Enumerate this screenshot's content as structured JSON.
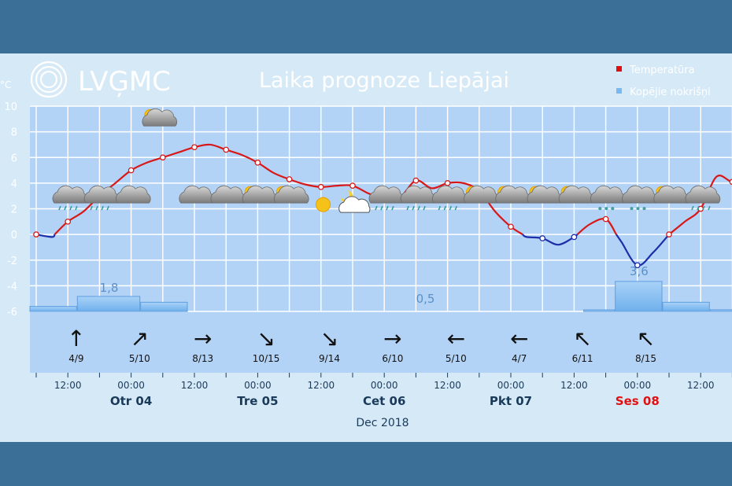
{
  "header": {
    "logo_text": "LVĢMC",
    "title": "Laika prognoze Liepājai"
  },
  "legend": {
    "placement": "top-right",
    "items": [
      {
        "label": "Temperatūra",
        "color": "#e01010"
      },
      {
        "label": "Kopējie nokrišņi",
        "color": "#7ab8f0"
      }
    ]
  },
  "chart_data": {
    "type": "line",
    "title": "Laika prognoze Liepājai",
    "yunit": "°C",
    "ylim": [
      -6,
      10
    ],
    "yticks": [
      "10",
      "8",
      "6",
      "4",
      "2",
      "0",
      "-2",
      "-4",
      "-6"
    ],
    "grid": true,
    "month_label": "Dec 2018",
    "time_ticks": [
      "12:00",
      "00:00",
      "12:00",
      "00:00",
      "12:00",
      "00:00",
      "12:00",
      "00:00",
      "12:00",
      "00:00",
      "12:00"
    ],
    "day_labels": [
      {
        "label": "Otr 04",
        "weekend": false
      },
      {
        "label": "Tre 05",
        "weekend": false
      },
      {
        "label": "Cet 06",
        "weekend": false
      },
      {
        "label": "Pkt 07",
        "weekend": false
      },
      {
        "label": "Ses 08",
        "weekend": true
      }
    ],
    "x_hours": [
      0,
      3,
      6,
      9,
      12,
      15,
      18,
      21,
      24,
      27,
      30,
      33,
      36,
      39,
      42,
      45,
      48,
      51,
      54,
      57,
      60,
      63,
      66,
      69,
      72,
      75,
      78,
      81,
      84,
      87,
      90,
      93,
      96,
      99,
      102,
      105,
      108,
      111
    ],
    "temperature": [
      0.0,
      -0.2,
      1.0,
      1.8,
      3.0,
      4.0,
      5.0,
      5.6,
      6.0,
      6.4,
      6.8,
      7.0,
      6.6,
      6.2,
      5.6,
      4.8,
      4.3,
      3.9,
      3.7,
      3.8,
      3.8,
      3.2,
      2.8,
      2.9,
      4.2,
      3.6,
      4.0,
      4.0,
      3.4,
      1.8,
      0.6,
      -0.2,
      -0.3,
      -0.8,
      -0.2,
      0.8,
      1.2,
      -0.6
    ],
    "temperature_tail": {
      "x_hours": [
        114,
        117,
        120,
        123,
        126,
        129,
        132,
        135
      ],
      "values": [
        -2.4,
        -1.4,
        0.0,
        1.0,
        2.0,
        4.5,
        4.1,
        4.3
      ]
    },
    "marker_hours": [
      0,
      6,
      12,
      18,
      24,
      30,
      36,
      42,
      48,
      54,
      60,
      66,
      72,
      78,
      84,
      90,
      96,
      102,
      108,
      114,
      120,
      126,
      132
    ],
    "precipitation": [
      {
        "start": 0,
        "end": 9,
        "value": 0.6
      },
      {
        "start": 9,
        "end": 21,
        "value": 1.8
      },
      {
        "start": 21,
        "end": 30,
        "value": 1.1
      },
      {
        "start": 105,
        "end": 111,
        "value": 0.1
      },
      {
        "start": 111,
        "end": 120,
        "value": 3.6
      },
      {
        "start": 120,
        "end": 129,
        "value": 1.1
      },
      {
        "start": 129,
        "end": 135,
        "value": 0.2
      }
    ],
    "precip_labels": [
      {
        "text": "1,8",
        "hour": 15
      },
      {
        "text": "0,5",
        "hour": 75
      },
      {
        "text": "3,6",
        "hour": 115.5
      }
    ],
    "wind": [
      {
        "hour": 7,
        "label": "4/9",
        "dir": "↑"
      },
      {
        "hour": 19,
        "label": "5/10",
        "dir": "↗"
      },
      {
        "hour": 31,
        "label": "8/13",
        "dir": "→"
      },
      {
        "hour": 43,
        "label": "10/15",
        "dir": "↘"
      },
      {
        "hour": 55,
        "label": "9/14",
        "dir": "↘"
      },
      {
        "hour": 67,
        "label": "6/10",
        "dir": "→"
      },
      {
        "hour": 79,
        "label": "5/10",
        "dir": "←"
      },
      {
        "hour": 91,
        "label": "4/7",
        "dir": "←"
      },
      {
        "hour": 103,
        "label": "6/11",
        "dir": "↖"
      },
      {
        "hour": 115,
        "label": "8/15",
        "dir": "↖"
      }
    ],
    "weather_icons": [
      {
        "hour": 7,
        "icon": "rain-cloud-icon"
      },
      {
        "hour": 13,
        "icon": "rain-cloud-icon"
      },
      {
        "hour": 19,
        "icon": "cloud-icon"
      },
      {
        "hour": 24,
        "icon": "partly-cloudy-icon"
      },
      {
        "hour": 31,
        "icon": "cloud-icon"
      },
      {
        "hour": 37,
        "icon": "cloud-icon"
      },
      {
        "hour": 43,
        "icon": "partly-cloudy-icon"
      },
      {
        "hour": 49,
        "icon": "partly-cloudy-icon"
      },
      {
        "hour": 55,
        "icon": "sun-icon"
      },
      {
        "hour": 61,
        "icon": "partly-cloudy-night-icon"
      },
      {
        "hour": 67,
        "icon": "rain-cloud-icon"
      },
      {
        "hour": 73,
        "icon": "rain-cloud-icon"
      },
      {
        "hour": 79,
        "icon": "rain-cloud-icon"
      },
      {
        "hour": 85,
        "icon": "partly-cloudy-icon"
      },
      {
        "hour": 91,
        "icon": "partly-cloudy-icon"
      },
      {
        "hour": 97,
        "icon": "partly-cloudy-icon"
      },
      {
        "hour": 103,
        "icon": "partly-cloudy-icon"
      },
      {
        "hour": 109,
        "icon": "snow-cloud-icon"
      },
      {
        "hour": 115,
        "icon": "snow-cloud-icon"
      },
      {
        "hour": 121,
        "icon": "partly-cloudy-icon"
      },
      {
        "hour": 127,
        "icon": "rain-cloud-icon"
      }
    ]
  }
}
